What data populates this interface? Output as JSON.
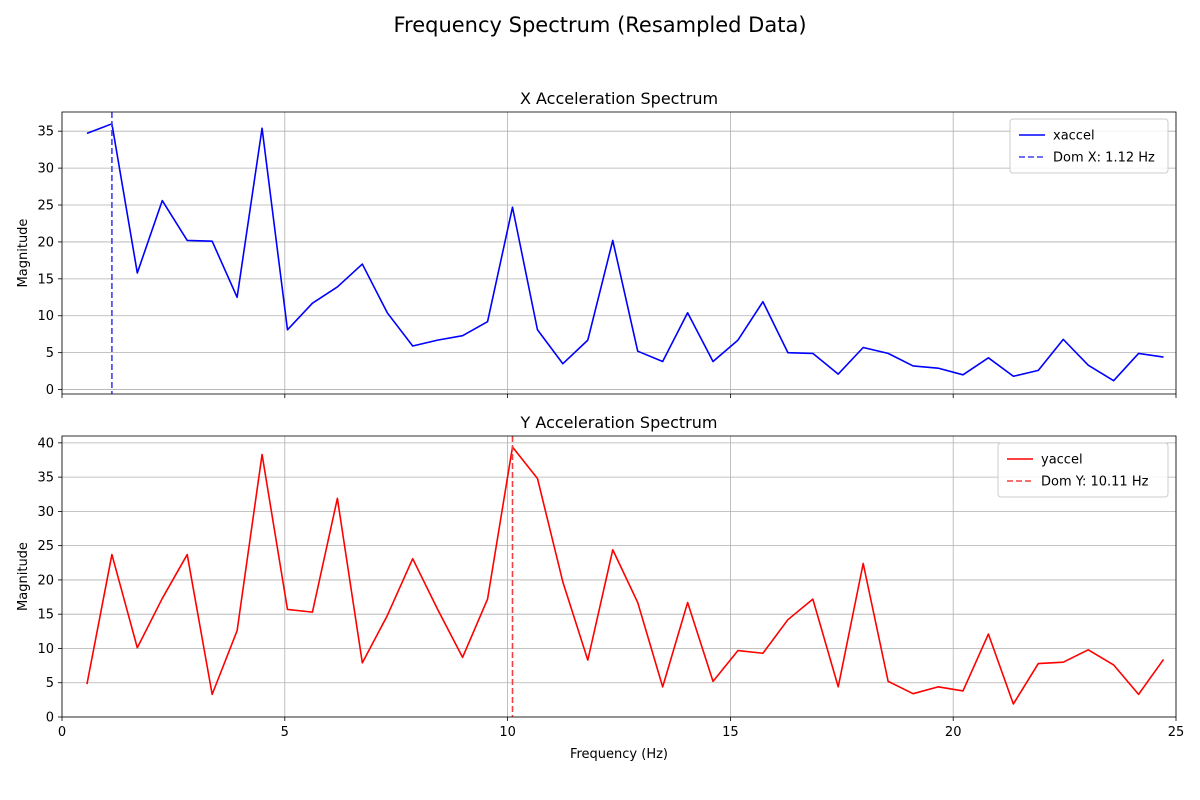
{
  "suptitle": "Frequency Spectrum (Resampled Data)",
  "chart_data": [
    {
      "type": "line",
      "title": "X Acceleration Spectrum",
      "xlabel": "",
      "ylabel": "Magnitude",
      "xlim": [
        0,
        25
      ],
      "ylim": [
        -0.6,
        37.6
      ],
      "xticks": [
        0,
        5,
        10,
        15,
        20,
        25
      ],
      "yticks": [
        0,
        5,
        10,
        15,
        20,
        25,
        30,
        35
      ],
      "grid": true,
      "legend_position": "top-right",
      "series": [
        {
          "name": "xaccel",
          "color": "#0000ff",
          "x": [
            0.56,
            1.12,
            1.69,
            2.25,
            2.81,
            3.37,
            3.93,
            4.49,
            5.06,
            5.62,
            6.18,
            6.74,
            7.3,
            7.87,
            8.43,
            8.99,
            9.55,
            10.11,
            10.67,
            11.24,
            11.8,
            12.36,
            12.92,
            13.48,
            14.04,
            14.61,
            15.17,
            15.73,
            16.29,
            16.85,
            17.42,
            17.98,
            18.54,
            19.1,
            19.66,
            20.22,
            20.79,
            21.35,
            21.91,
            22.47,
            23.03,
            23.6,
            24.16,
            24.72
          ],
          "y": [
            34.7,
            36.0,
            15.8,
            25.6,
            20.2,
            20.1,
            12.5,
            35.4,
            8.1,
            11.7,
            13.9,
            17.0,
            10.4,
            5.9,
            6.7,
            7.3,
            9.2,
            24.7,
            8.1,
            3.5,
            6.7,
            20.2,
            5.2,
            3.8,
            10.4,
            3.8,
            6.7,
            11.9,
            5.0,
            4.9,
            2.1,
            5.7,
            4.9,
            3.2,
            2.9,
            2.0,
            4.3,
            1.8,
            2.6,
            6.8,
            3.3,
            1.2,
            4.9,
            4.4
          ]
        }
      ],
      "marker": {
        "name": "Dom X: 1.12 Hz",
        "x": 1.12,
        "color": "#4040f0"
      }
    },
    {
      "type": "line",
      "title": "Y Acceleration Spectrum",
      "xlabel": "Frequency (Hz)",
      "ylabel": "Magnitude",
      "xlim": [
        0,
        25
      ],
      "ylim": [
        0,
        41
      ],
      "xticks": [
        0,
        5,
        10,
        15,
        20,
        25
      ],
      "yticks": [
        0,
        5,
        10,
        15,
        20,
        25,
        30,
        35,
        40
      ],
      "grid": true,
      "legend_position": "top-right",
      "series": [
        {
          "name": "yaccel",
          "color": "#ff0000",
          "x": [
            0.56,
            1.12,
            1.69,
            2.25,
            2.81,
            3.37,
            3.93,
            4.49,
            5.06,
            5.62,
            6.18,
            6.74,
            7.3,
            7.87,
            8.43,
            8.99,
            9.55,
            10.11,
            10.67,
            11.24,
            11.8,
            12.36,
            12.92,
            13.48,
            14.04,
            14.61,
            15.17,
            15.73,
            16.29,
            16.85,
            17.42,
            17.98,
            18.54,
            19.1,
            19.66,
            20.22,
            20.79,
            21.35,
            21.91,
            22.47,
            23.03,
            23.6,
            24.16,
            24.72
          ],
          "y": [
            4.8,
            23.7,
            10.1,
            17.3,
            23.7,
            3.3,
            12.6,
            38.3,
            15.7,
            15.3,
            31.9,
            7.9,
            14.8,
            23.1,
            15.7,
            8.7,
            17.2,
            39.4,
            34.8,
            19.7,
            8.3,
            24.4,
            16.7,
            4.4,
            16.7,
            5.2,
            9.7,
            9.3,
            14.2,
            17.2,
            4.4,
            22.4,
            5.2,
            3.4,
            4.4,
            3.8,
            12.1,
            1.9,
            7.8,
            8.0,
            9.8,
            7.6,
            3.3,
            8.4
          ]
        }
      ],
      "marker": {
        "name": "Dom Y: 10.11 Hz",
        "x": 10.11,
        "color": "#f04040"
      }
    }
  ]
}
